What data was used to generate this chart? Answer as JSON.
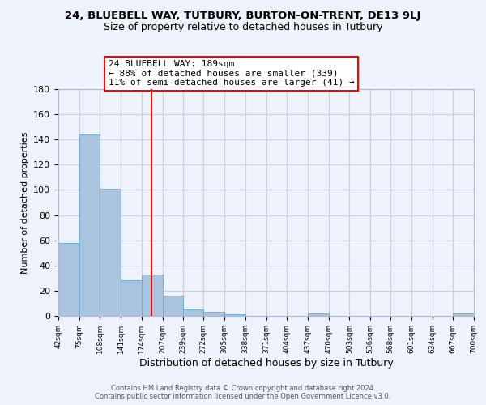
{
  "title": "24, BLUEBELL WAY, TUTBURY, BURTON-ON-TRENT, DE13 9LJ",
  "subtitle": "Size of property relative to detached houses in Tutbury",
  "xlabel": "Distribution of detached houses by size in Tutbury",
  "ylabel": "Number of detached properties",
  "bin_edges": [
    42,
    75,
    108,
    141,
    174,
    207,
    239,
    272,
    305,
    338,
    371,
    404,
    437,
    470,
    503,
    536,
    568,
    601,
    634,
    667,
    700
  ],
  "bar_heights": [
    58,
    144,
    101,
    28,
    33,
    16,
    5,
    3,
    1,
    0,
    0,
    0,
    2,
    0,
    0,
    0,
    0,
    0,
    0,
    2
  ],
  "bar_color": "#aac4e0",
  "bar_edgecolor": "#6aaed6",
  "vline_x": 189,
  "vline_color": "red",
  "annotation_line1": "24 BLUEBELL WAY: 189sqm",
  "annotation_line2": "← 88% of detached houses are smaller (339)",
  "annotation_line3": "11% of semi-detached houses are larger (41) →",
  "annotation_box_color": "white",
  "annotation_box_edgecolor": "red",
  "ylim": [
    0,
    180
  ],
  "yticks": [
    0,
    20,
    40,
    60,
    80,
    100,
    120,
    140,
    160,
    180
  ],
  "tick_labels": [
    "42sqm",
    "75sqm",
    "108sqm",
    "141sqm",
    "174sqm",
    "207sqm",
    "239sqm",
    "272sqm",
    "305sqm",
    "338sqm",
    "371sqm",
    "404sqm",
    "437sqm",
    "470sqm",
    "503sqm",
    "536sqm",
    "568sqm",
    "601sqm",
    "634sqm",
    "667sqm",
    "700sqm"
  ],
  "footer_line1": "Contains HM Land Registry data © Crown copyright and database right 2024.",
  "footer_line2": "Contains public sector information licensed under the Open Government Licence v3.0.",
  "background_color": "#eef2fa",
  "grid_color": "#c8d0e0"
}
